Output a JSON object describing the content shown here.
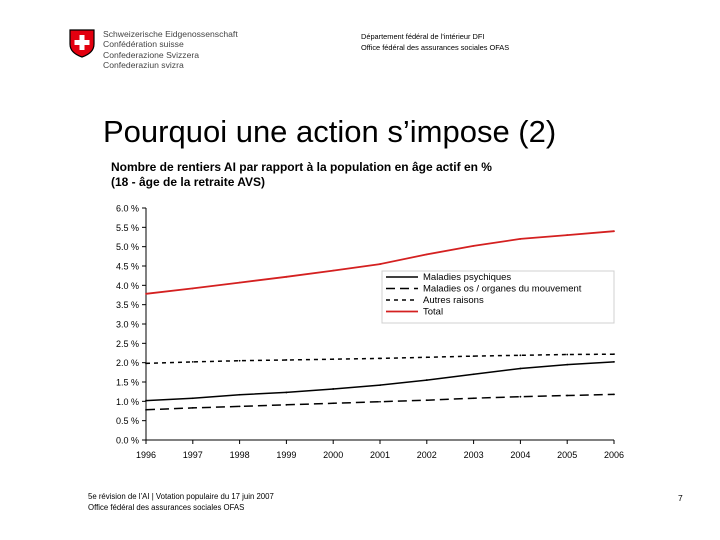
{
  "header": {
    "confederation_lines": [
      "Schweizerische Eidgenossenschaft",
      "Confédération suisse",
      "Confederazione Svizzera",
      "Confederaziun svizra"
    ],
    "department_lines": [
      "Département fédéral de l'intérieur DFI",
      "Office fédéral des assurances sociales OFAS"
    ]
  },
  "slide": {
    "title": "Pourquoi une action s’impose (2)"
  },
  "footer": {
    "line1": "5e révision de l’AI | Votation populaire du 17 juin 2007",
    "line2": "Office fédéral des assurances sociales OFAS",
    "page_number": "7"
  },
  "chart_data": {
    "type": "line",
    "title": "Nombre de rentiers AI par rapport à la population en âge actif en %",
    "subtitle": "(18 - âge de la retraite AVS)",
    "xlabel": "",
    "ylabel": "",
    "x": [
      "1996",
      "1997",
      "1998",
      "1999",
      "2000",
      "2001",
      "2002",
      "2003",
      "2004",
      "2005",
      "2006"
    ],
    "ylim": [
      0,
      6
    ],
    "yticks": [
      "0.0 %",
      "0.5 %",
      "1.0 %",
      "1.5 %",
      "2.0 %",
      "2.5 %",
      "3.0 %",
      "3.5 %",
      "4.0 %",
      "4.5 %",
      "5.0 %",
      "5.5 %",
      "6.0 %"
    ],
    "legend_position": "center-right",
    "series": [
      {
        "name": "Maladies psychiques",
        "color": "#000000",
        "style": "solid",
        "values": [
          1.02,
          1.08,
          1.17,
          1.23,
          1.32,
          1.42,
          1.55,
          1.7,
          1.85,
          1.95,
          2.02
        ]
      },
      {
        "name": "Maladies os / organes du mouvement",
        "color": "#000000",
        "style": "longdash",
        "values": [
          0.78,
          0.83,
          0.87,
          0.91,
          0.95,
          0.99,
          1.03,
          1.08,
          1.12,
          1.15,
          1.18
        ]
      },
      {
        "name": "Autres raisons",
        "color": "#000000",
        "style": "shortdash",
        "values": [
          1.98,
          2.02,
          2.05,
          2.07,
          2.09,
          2.11,
          2.14,
          2.17,
          2.19,
          2.21,
          2.22
        ]
      },
      {
        "name": "Total",
        "color": "#d42020",
        "style": "solid",
        "values": [
          3.78,
          3.92,
          4.07,
          4.22,
          4.38,
          4.55,
          4.8,
          5.02,
          5.2,
          5.3,
          5.4
        ]
      }
    ]
  }
}
